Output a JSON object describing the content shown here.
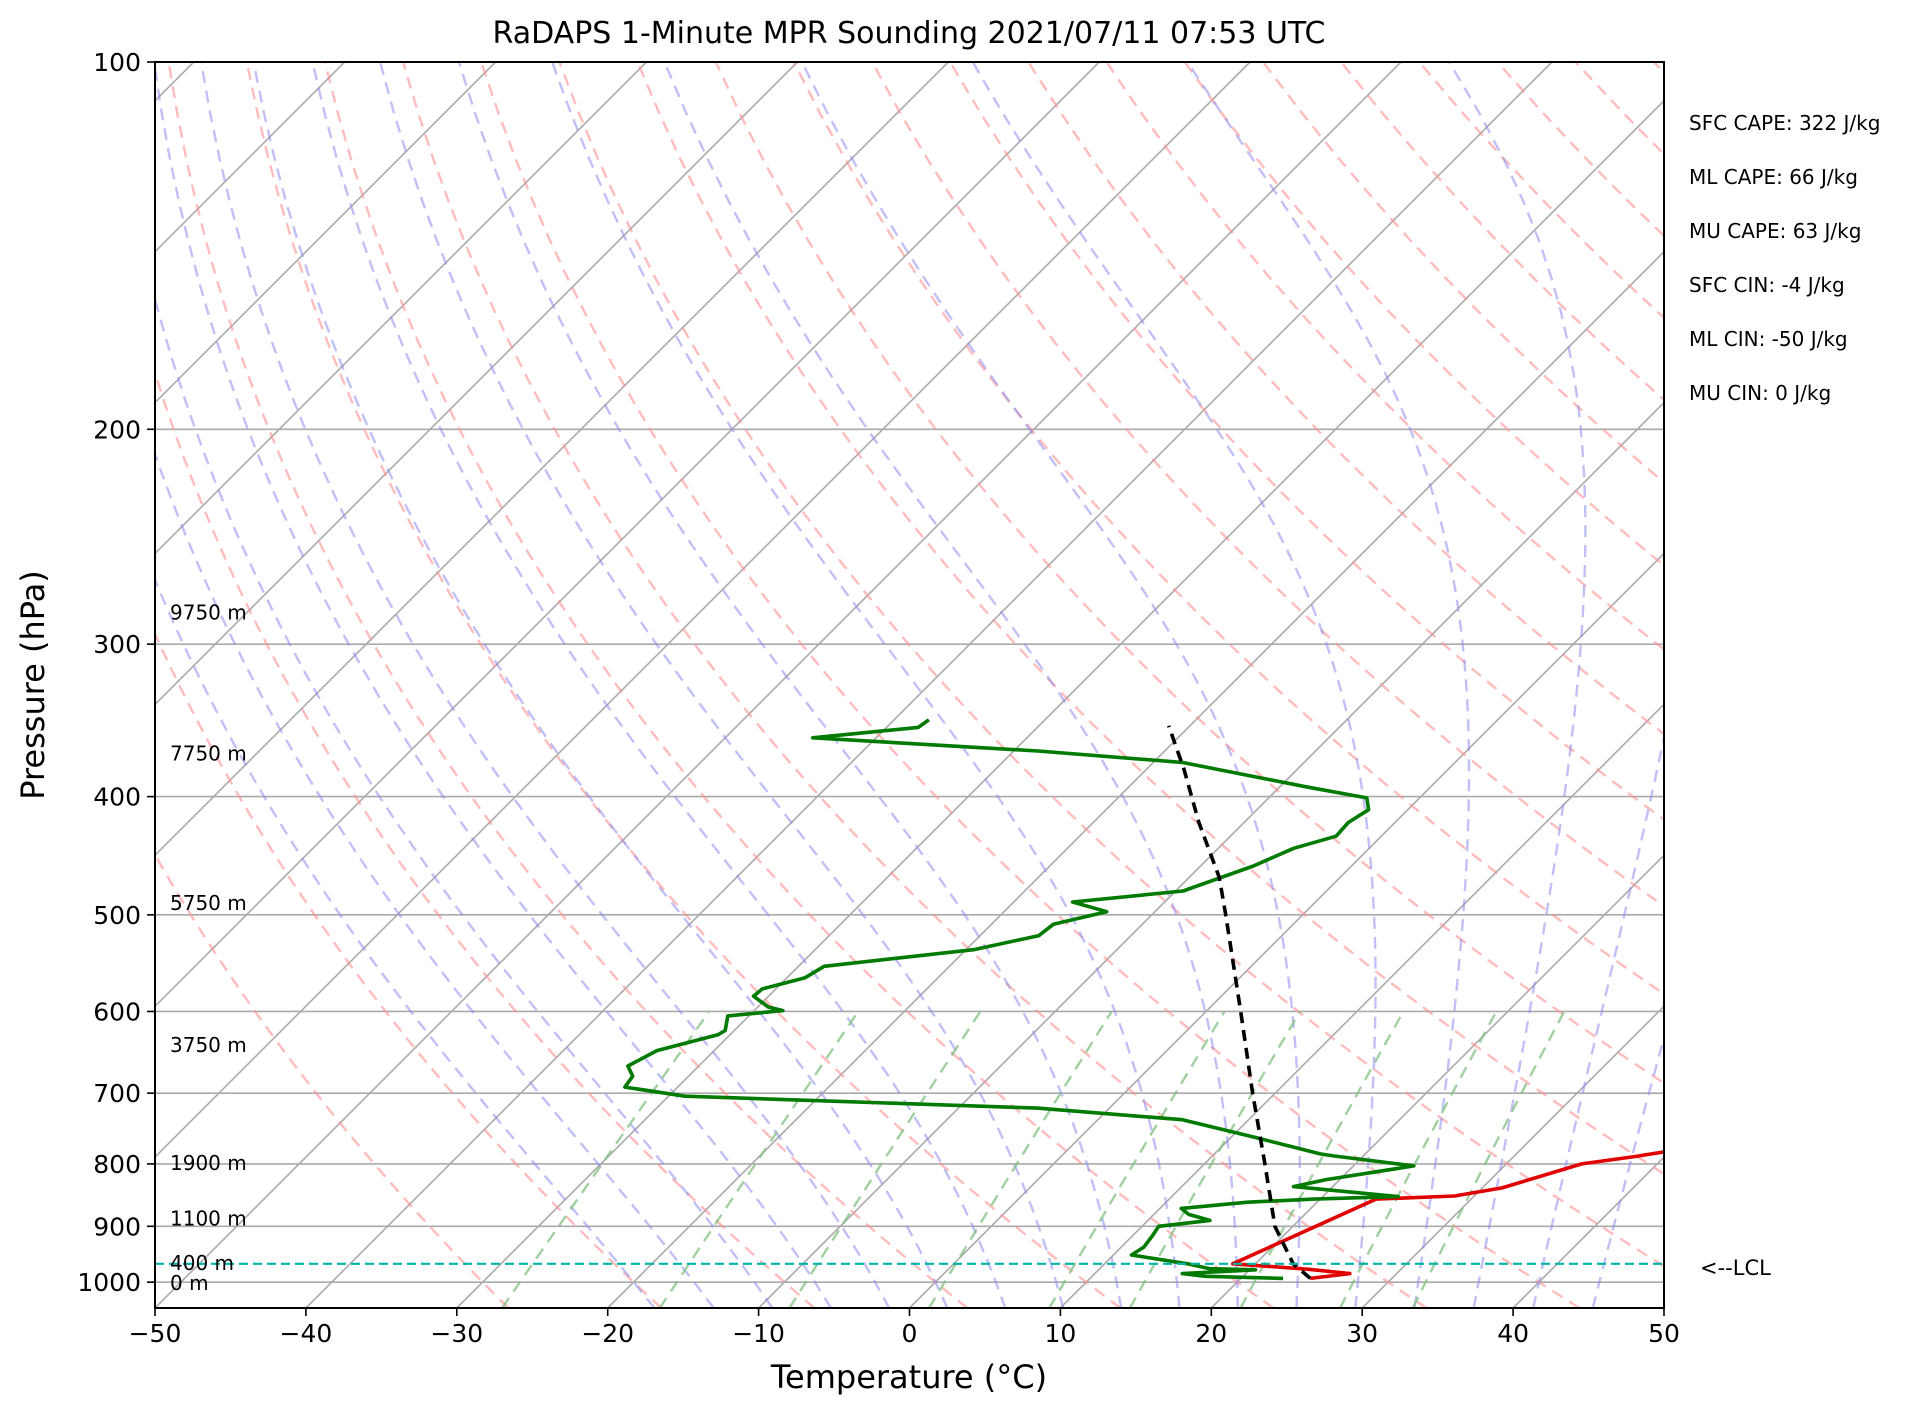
{
  "chart_data": {
    "type": "skew-t",
    "title": "RaDAPS 1-Minute MPR Sounding 2021/07/11 07:53 UTC",
    "xlabel": "Temperature (°C)",
    "ylabel": "Pressure (hPa)",
    "xlim": [
      -50,
      50
    ],
    "ylim": [
      1050,
      100
    ],
    "y_scale": "log",
    "skew_note": "isotherms lean right with height",
    "grid": true,
    "x_ticks": [
      "−50",
      "−40",
      "−30",
      "−20",
      "−10",
      "0",
      "10",
      "20",
      "30",
      "40",
      "50"
    ],
    "x_tick_values": [
      -50,
      -40,
      -30,
      -20,
      -10,
      0,
      10,
      20,
      30,
      40,
      50
    ],
    "y_ticks": [
      "100",
      "200",
      "300",
      "400",
      "500",
      "600",
      "700",
      "800",
      "900",
      "1000"
    ],
    "y_tick_values": [
      100,
      200,
      300,
      400,
      500,
      600,
      700,
      800,
      900,
      1000
    ],
    "height_labels": [
      {
        "text": "9750 m",
        "p": 282
      },
      {
        "text": "7750 m",
        "p": 368
      },
      {
        "text": "5750 m",
        "p": 488
      },
      {
        "text": "3750 m",
        "p": 638
      },
      {
        "text": "1900 m",
        "p": 797
      },
      {
        "text": "1100 m",
        "p": 885
      },
      {
        "text": "400 m",
        "p": 963
      },
      {
        "text": "0 m",
        "p": 1000
      }
    ],
    "lcl": {
      "label": "<--LCL",
      "p": 966
    },
    "stats": [
      "SFC CAPE: 322 J/kg",
      "ML CAPE: 66 J/kg",
      "MU CAPE: 63 J/kg",
      "SFC CIN: -4 J/kg",
      "ML CIN: -50 J/kg",
      "MU CIN: 0 J/kg"
    ],
    "series": [
      {
        "role": "temperature",
        "color": "#e00000",
        "points": [
          [
            24.6,
            993
          ],
          [
            26.9,
            984
          ],
          [
            23.9,
            976
          ],
          [
            18.5,
            966
          ],
          [
            23.7,
            855
          ],
          [
            28.7,
            850
          ],
          [
            31.3,
            837
          ],
          [
            35.0,
            800
          ],
          [
            38.0,
            789
          ],
          [
            47.2,
            751
          ],
          [
            50.0,
            745
          ]
        ]
      },
      {
        "role": "dewpoint",
        "color": "#007a00",
        "points": [
          [
            22.8,
            993
          ],
          [
            17.5,
            989
          ],
          [
            15.8,
            984
          ],
          [
            20.4,
            977
          ],
          [
            17.3,
            975
          ],
          [
            15.5,
            966
          ],
          [
            11.2,
            950
          ],
          [
            11.5,
            936
          ],
          [
            11.3,
            915
          ],
          [
            11.1,
            900
          ],
          [
            14.1,
            890
          ],
          [
            12.3,
            880
          ],
          [
            11.4,
            870
          ],
          [
            15.4,
            860
          ],
          [
            19.6,
            855
          ],
          [
            25.0,
            851
          ],
          [
            17.4,
            835
          ],
          [
            19.1,
            824
          ],
          [
            24.0,
            803
          ],
          [
            18.0,
            788
          ],
          [
            17.0,
            785
          ],
          [
            11.6,
            761
          ],
          [
            5.6,
            736
          ],
          [
            -4.8,
            720
          ],
          [
            -19.8,
            710
          ],
          [
            -28.9,
            704
          ],
          [
            -33.5,
            692
          ],
          [
            -33.7,
            678
          ],
          [
            -34.7,
            665
          ],
          [
            -33.8,
            646
          ],
          [
            -30.8,
            627
          ],
          [
            -30.6,
            622
          ],
          [
            -31.4,
            605
          ],
          [
            -28.1,
            599
          ],
          [
            -29.3,
            595
          ],
          [
            -31.0,
            583
          ],
          [
            -30.9,
            575
          ],
          [
            -28.8,
            563
          ],
          [
            -28.3,
            551
          ],
          [
            -19.5,
            534
          ],
          [
            -16.1,
            520
          ],
          [
            -15.9,
            509
          ],
          [
            -13.2,
            497
          ],
          [
            -16.1,
            488
          ],
          [
            -9.5,
            478
          ],
          [
            -6.5,
            456
          ],
          [
            -5.0,
            441
          ],
          [
            -3.0,
            431
          ],
          [
            -3.1,
            420
          ],
          [
            -2.6,
            410
          ],
          [
            -3.5,
            401
          ],
          [
            -8.1,
            393
          ],
          [
            -18.1,
            375
          ],
          [
            -28.4,
            367
          ],
          [
            -44.2,
            358
          ],
          [
            -37.9,
            351
          ],
          [
            -37.7,
            346
          ]
        ]
      },
      {
        "role": "parcel",
        "color": "#000000",
        "points": [
          [
            24.6,
            993
          ],
          [
            22.5,
            966
          ],
          [
            18.8,
            900
          ],
          [
            14.0,
            800
          ],
          [
            8.5,
            700
          ],
          [
            2.3,
            600
          ],
          [
            -5.1,
            500
          ],
          [
            -8.0,
            466
          ],
          [
            -13.0,
            420
          ],
          [
            -17.5,
            380
          ],
          [
            -21.4,
            350
          ]
        ]
      }
    ],
    "background_lines": {
      "isotherms_every_c": 10,
      "dry_adiabats_color": "#ff9090",
      "moist_adiabats_color": "#8c8cf0",
      "mixing_ratio_color": "#80c080",
      "lcl_line_color": "#00b4a8"
    }
  }
}
